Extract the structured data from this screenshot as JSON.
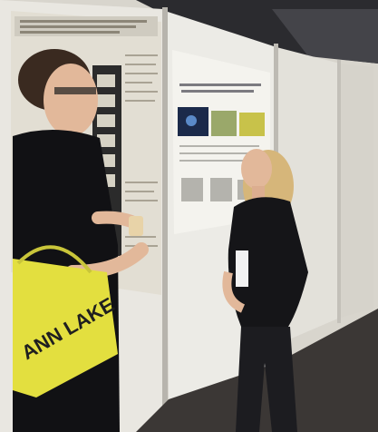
{
  "photo": {
    "scene": "poster-session-conversation",
    "bag_print": "ANN LAKE",
    "colors": {
      "wall": "#cfccc4",
      "panel": "#ebe9e3",
      "poster_left": "#e2ded3",
      "poster_right": "#f4f3ee",
      "ceiling": "#2b2b2f",
      "floor": "#3b3735",
      "bag": "#e3df3f",
      "shirt": "#111114",
      "hair_left": "#3a2a20",
      "hair_right": "#d6b67a",
      "skin": "#e2b89a"
    }
  }
}
